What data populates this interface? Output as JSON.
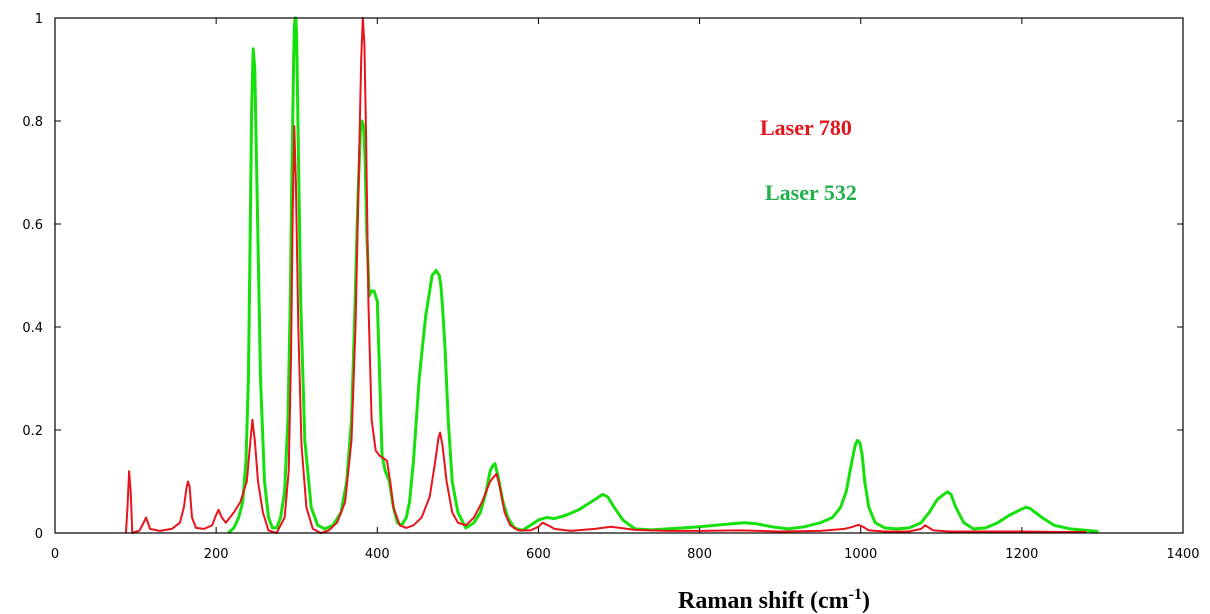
{
  "chart_data": {
    "type": "line",
    "title": "",
    "xlabel": {
      "main": "Raman shift (cm",
      "sup": "-1",
      "close": ")"
    },
    "ylabel": "",
    "xlim": [
      0,
      1400
    ],
    "ylim": [
      0,
      1
    ],
    "x_ticks": [
      "0",
      "200",
      "400",
      "600",
      "800",
      "1000",
      "1200",
      "1400"
    ],
    "y_ticks": [
      "0",
      "0.2",
      "0.4",
      "0.6",
      "0.8",
      "1"
    ],
    "grid": false,
    "legend_placement": "top-right",
    "series": [
      {
        "name": "Laser 780",
        "color": "#e8141c",
        "x": [
          88,
          90,
          92,
          94,
          96,
          105,
          110,
          113,
          118,
          130,
          145,
          155,
          160,
          163,
          165,
          167,
          170,
          175,
          185,
          195,
          200,
          203,
          207,
          212,
          222,
          230,
          238,
          242,
          245,
          248,
          252,
          258,
          265,
          275,
          285,
          290,
          293,
          295,
          297,
          299,
          302,
          306,
          312,
          320,
          330,
          340,
          350,
          360,
          368,
          373,
          377,
          380,
          382,
          384,
          386,
          389,
          393,
          398,
          403,
          408,
          412,
          416,
          420,
          428,
          436,
          445,
          455,
          465,
          472,
          476,
          478,
          481,
          486,
          493,
          500,
          510,
          520,
          530,
          540,
          545,
          548,
          552,
          558,
          565,
          575,
          590,
          600,
          605,
          612,
          620,
          640,
          670,
          690,
          720,
          760,
          800,
          850,
          900,
          950,
          980,
          990,
          997,
          1003,
          1010,
          1030,
          1060,
          1075,
          1080,
          1085,
          1090,
          1110,
          1150,
          1200,
          1250,
          1280
        ],
        "y": [
          0,
          0.05,
          0.12,
          0.08,
          0,
          0.005,
          0.02,
          0.03,
          0.008,
          0.004,
          0.008,
          0.02,
          0.05,
          0.085,
          0.1,
          0.09,
          0.03,
          0.01,
          0.008,
          0.015,
          0.035,
          0.045,
          0.03,
          0.02,
          0.04,
          0.06,
          0.1,
          0.17,
          0.22,
          0.18,
          0.1,
          0.04,
          0.005,
          0,
          0.03,
          0.12,
          0.35,
          0.62,
          0.79,
          0.68,
          0.4,
          0.17,
          0.05,
          0.008,
          0,
          0.005,
          0.02,
          0.06,
          0.18,
          0.4,
          0.7,
          0.92,
          1.0,
          0.95,
          0.78,
          0.45,
          0.22,
          0.16,
          0.15,
          0.145,
          0.14,
          0.1,
          0.05,
          0.015,
          0.01,
          0.015,
          0.03,
          0.07,
          0.14,
          0.185,
          0.195,
          0.17,
          0.1,
          0.04,
          0.02,
          0.015,
          0.03,
          0.06,
          0.1,
          0.11,
          0.115,
          0.09,
          0.04,
          0.015,
          0.005,
          0.005,
          0.012,
          0.02,
          0.015,
          0.008,
          0.004,
          0.008,
          0.012,
          0.006,
          0.004,
          0.004,
          0.005,
          0.003,
          0.004,
          0.008,
          0.012,
          0.016,
          0.012,
          0.005,
          0.003,
          0.003,
          0.008,
          0.015,
          0.01,
          0.005,
          0.003,
          0.003,
          0.003,
          0.002,
          0.002
        ]
      },
      {
        "name": "Laser 532",
        "color": "#16e00c",
        "x": [
          215,
          222,
          228,
          233,
          237,
          240,
          242,
          244,
          246,
          248,
          251,
          255,
          260,
          265,
          270,
          275,
          280,
          285,
          289,
          292,
          294,
          296,
          297,
          298,
          299,
          300,
          302,
          305,
          310,
          318,
          326,
          335,
          345,
          355,
          362,
          368,
          372,
          376,
          379,
          381,
          383,
          385,
          387,
          390,
          393,
          396,
          400,
          403,
          406,
          410,
          415,
          420,
          425,
          430,
          436,
          440,
          445,
          452,
          460,
          468,
          473,
          477,
          479,
          481,
          484,
          488,
          493,
          500,
          510,
          520,
          528,
          535,
          540,
          543,
          546,
          550,
          556,
          562,
          570,
          580,
          590,
          600,
          610,
          620,
          635,
          650,
          665,
          675,
          680,
          686,
          694,
          705,
          720,
          740,
          760,
          780,
          800,
          820,
          840,
          856,
          870,
          890,
          910,
          930,
          950,
          965,
          975,
          982,
          988,
          993,
          996,
          999,
          1002,
          1005,
          1010,
          1018,
          1030,
          1045,
          1060,
          1075,
          1085,
          1095,
          1103,
          1108,
          1112,
          1118,
          1128,
          1140,
          1155,
          1170,
          1185,
          1198,
          1205,
          1210,
          1215,
          1225,
          1240,
          1260,
          1280,
          1295
        ],
        "y": [
          0,
          0.01,
          0.03,
          0.06,
          0.14,
          0.3,
          0.55,
          0.82,
          0.94,
          0.9,
          0.65,
          0.3,
          0.1,
          0.03,
          0.01,
          0.01,
          0.03,
          0.08,
          0.22,
          0.45,
          0.7,
          0.9,
          0.98,
          1.0,
          1.0,
          0.96,
          0.75,
          0.45,
          0.18,
          0.05,
          0.015,
          0.008,
          0.015,
          0.04,
          0.1,
          0.22,
          0.42,
          0.65,
          0.78,
          0.8,
          0.79,
          0.72,
          0.58,
          0.46,
          0.47,
          0.47,
          0.45,
          0.3,
          0.15,
          0.12,
          0.1,
          0.05,
          0.02,
          0.015,
          0.03,
          0.06,
          0.14,
          0.3,
          0.42,
          0.5,
          0.51,
          0.5,
          0.48,
          0.44,
          0.36,
          0.22,
          0.1,
          0.04,
          0.01,
          0.02,
          0.04,
          0.08,
          0.12,
          0.13,
          0.135,
          0.11,
          0.06,
          0.03,
          0.01,
          0.005,
          0.015,
          0.025,
          0.03,
          0.028,
          0.035,
          0.045,
          0.06,
          0.07,
          0.075,
          0.07,
          0.05,
          0.025,
          0.008,
          0.006,
          0.008,
          0.01,
          0.012,
          0.015,
          0.018,
          0.02,
          0.018,
          0.012,
          0.008,
          0.012,
          0.02,
          0.03,
          0.05,
          0.08,
          0.13,
          0.17,
          0.18,
          0.175,
          0.15,
          0.1,
          0.05,
          0.02,
          0.01,
          0.008,
          0.01,
          0.02,
          0.04,
          0.065,
          0.075,
          0.08,
          0.075,
          0.05,
          0.02,
          0.008,
          0.01,
          0.02,
          0.035,
          0.045,
          0.05,
          0.048,
          0.042,
          0.03,
          0.015,
          0.008,
          0.005,
          0.003
        ]
      }
    ]
  },
  "colors": {
    "laser_780": "#e8141c",
    "laser_532": "#16e00c",
    "laser_780_label": "#e3141c",
    "laser_532_label": "#22b04c"
  }
}
